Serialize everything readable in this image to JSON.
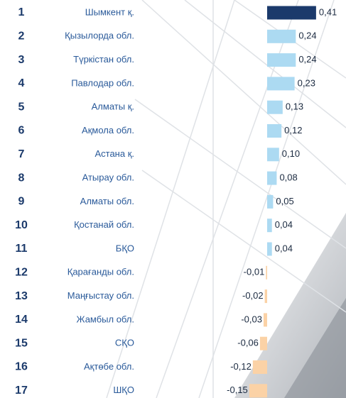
{
  "chart_data": {
    "type": "bar",
    "orientation": "horizontal",
    "ranks": [
      1,
      2,
      3,
      4,
      5,
      6,
      7,
      8,
      9,
      10,
      11,
      12,
      13,
      14,
      15,
      16,
      17
    ],
    "categories": [
      "Шымкент қ.",
      "Қызылорда обл.",
      "Түркістан обл.",
      "Павлодар обл.",
      "Алматы қ.",
      "Ақмола обл.",
      "Астана қ.",
      "Атырау обл.",
      "Алматы обл.",
      "Қостанай обл.",
      "БҚО",
      "Қарағанды обл.",
      "Маңғыстау обл.",
      "Жамбыл обл.",
      "СҚО",
      "Ақтөбе обл.",
      "ШҚО"
    ],
    "values": [
      0.41,
      0.24,
      0.24,
      0.23,
      0.13,
      0.12,
      0.1,
      0.08,
      0.05,
      0.04,
      0.04,
      -0.01,
      -0.02,
      -0.03,
      -0.06,
      -0.12,
      -0.15
    ],
    "value_labels": [
      "0,41",
      "0,24",
      "0,24",
      "0,23",
      "0,13",
      "0,12",
      "0,10",
      "0,08",
      "0,05",
      "0,04",
      "0,04",
      "-0,01",
      "-0,02",
      "-0,03",
      "-0,06",
      "-0,12",
      "-0,15"
    ],
    "colors": [
      "#1b3a6b",
      "#acdaf2",
      "#acdaf2",
      "#acdaf2",
      "#acdaf2",
      "#acdaf2",
      "#acdaf2",
      "#acdaf2",
      "#acdaf2",
      "#acdaf2",
      "#acdaf2",
      "#fbd2a6",
      "#fbd2a6",
      "#fbd2a6",
      "#fbd2a6",
      "#fbd2a6",
      "#fbd2a6"
    ]
  }
}
